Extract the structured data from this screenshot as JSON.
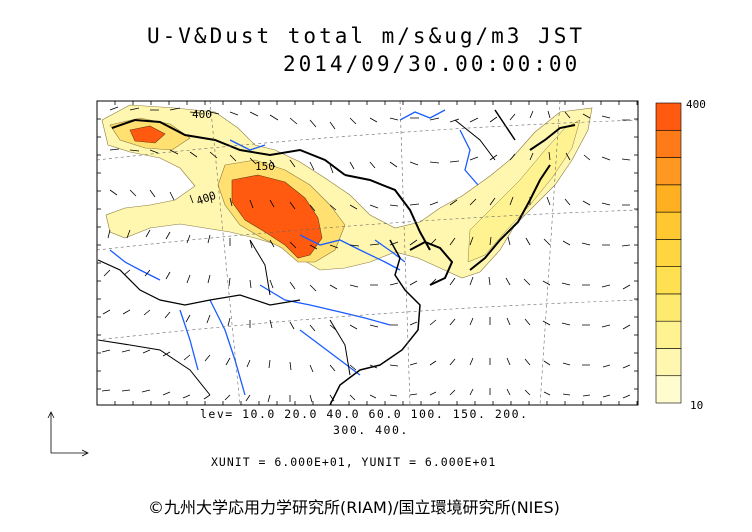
{
  "title": {
    "line1": "U-V&Dust total m/s&ug/m3 JST",
    "line2": "2014/09/30.00:00:00"
  },
  "levels": {
    "line1": "lev= 10.0 20.0 40.0 60.0 100. 150. 200.",
    "line2": "300. 400.",
    "values": [
      10,
      20,
      40,
      60,
      100,
      150,
      200,
      300,
      400
    ]
  },
  "units_text": "XUNIT = 6.000E+01, YUNIT = 6.000E+01",
  "colorbar": {
    "max_label": "400",
    "min_label": "10",
    "colors": [
      "#fffcd0",
      "#fff7b0",
      "#fff290",
      "#ffea70",
      "#ffe050",
      "#ffd640",
      "#ffc830",
      "#ffb020",
      "#ff9820",
      "#ff7a18",
      "#ff5a10"
    ]
  },
  "contour_labels": [
    "400",
    "150",
    "400"
  ],
  "copyright": "©九州大学応用力学研究所(RIAM)/国立環境研究所(NIES)",
  "colors": {
    "coast": "#000000",
    "river": "#1a5cff",
    "dust_low": "#fff7b0",
    "dust_high": "#ff5a10"
  }
}
